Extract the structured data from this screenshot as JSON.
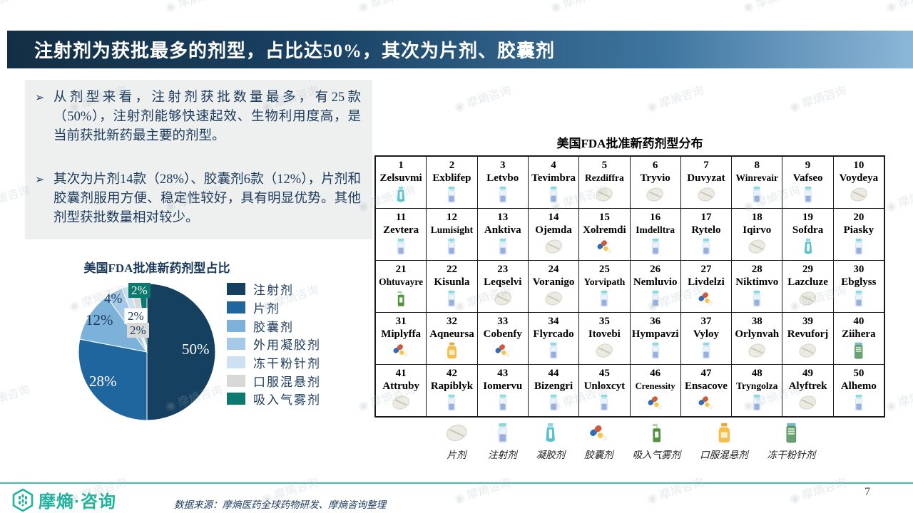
{
  "slide": {
    "title": "注射剂为获批最多的剂型，占比达50%，其次为片剂、胶囊剂",
    "page_number": "7",
    "source": "数据来源：摩熵医药全球药物研发、摩熵咨询整理",
    "logo_text": "摩熵·咨询",
    "watermark_text": "摩熵咨询"
  },
  "bullets": [
    "从剂型来看，注射剂获批数量最多，有25款（50%），注射剂能够快速起效、生物利用度高，是当前获批新药最主要的剂型。",
    "其次为片剂14款（28%）、胶囊剂6款（12%），片剂和胶囊剂服用方便、稳定性较好，具有明显优势。其他剂型获批数量相对较少。"
  ],
  "chart_data": {
    "type": "pie",
    "title": "美国FDA批准新药剂型占比",
    "labels": [
      "注射剂",
      "片剂",
      "胶囊剂",
      "外用凝胶剂",
      "冻干粉针剂",
      "口服混悬剂",
      "吸入气雾剂"
    ],
    "values": [
      50,
      28,
      12,
      4,
      2,
      2,
      2
    ],
    "unit": "%",
    "colors": [
      "#16405f",
      "#1f669e",
      "#7cb1da",
      "#a5c9e6",
      "#cee1f2",
      "#d8d8d8",
      "#0c7a6e"
    ],
    "legend_position": "right",
    "start_angle_deg": 0,
    "direction": "clockwise"
  },
  "table": {
    "title": "美国FDA批准新药剂型分布",
    "drugs": [
      {
        "no": "1",
        "name": "Zelsuvmi",
        "form": "gel"
      },
      {
        "no": "2",
        "name": "Exblifep",
        "form": "injection"
      },
      {
        "no": "3",
        "name": "Letvbo",
        "form": "injection"
      },
      {
        "no": "4",
        "name": "Tevimbra",
        "form": "injection"
      },
      {
        "no": "5",
        "name": "Rezdiffra",
        "form": "tablet"
      },
      {
        "no": "6",
        "name": "Tryvio",
        "form": "tablet"
      },
      {
        "no": "7",
        "name": "Duvyzat",
        "form": "tablet"
      },
      {
        "no": "8",
        "name": "Winrevair",
        "form": "injection"
      },
      {
        "no": "9",
        "name": "Vafseo",
        "form": "injection"
      },
      {
        "no": "10",
        "name": "Voydeya",
        "form": "tablet"
      },
      {
        "no": "11",
        "name": "Zevtera",
        "form": "injection"
      },
      {
        "no": "12",
        "name": "Lumisight",
        "form": "injection"
      },
      {
        "no": "13",
        "name": "Anktiva",
        "form": "injection"
      },
      {
        "no": "14",
        "name": "Ojemda",
        "form": "tablet"
      },
      {
        "no": "15",
        "name": "Xolremdi",
        "form": "capsule"
      },
      {
        "no": "16",
        "name": "Imdelltra",
        "form": "injection"
      },
      {
        "no": "17",
        "name": "Rytelo",
        "form": "injection"
      },
      {
        "no": "18",
        "name": "Iqirvo",
        "form": "tablet"
      },
      {
        "no": "19",
        "name": "Sofdra",
        "form": "gel"
      },
      {
        "no": "20",
        "name": "Piasky",
        "form": "injection"
      },
      {
        "no": "21",
        "name": "Ohtuvayre",
        "form": "inhaler"
      },
      {
        "no": "22",
        "name": "Kisunla",
        "form": "injection"
      },
      {
        "no": "23",
        "name": "Leqselvi",
        "form": "tablet"
      },
      {
        "no": "24",
        "name": "Voranigo",
        "form": "tablet"
      },
      {
        "no": "25",
        "name": "Yorvipath",
        "form": "injection"
      },
      {
        "no": "26",
        "name": "Nemluvio",
        "form": "injection"
      },
      {
        "no": "27",
        "name": "Livdelzi",
        "form": "capsule"
      },
      {
        "no": "28",
        "name": "Niktimvo",
        "form": "injection"
      },
      {
        "no": "29",
        "name": "Lazcluze",
        "form": "tablet"
      },
      {
        "no": "30",
        "name": "Ebglyss",
        "form": "injection"
      },
      {
        "no": "31",
        "name": "Miplyffa",
        "form": "capsule"
      },
      {
        "no": "32",
        "name": "Aqneursa",
        "form": "suspension"
      },
      {
        "no": "33",
        "name": "Cobenfy",
        "form": "capsule"
      },
      {
        "no": "34",
        "name": "Flyrcado",
        "form": "injection"
      },
      {
        "no": "35",
        "name": "Itovebi",
        "form": "tablet"
      },
      {
        "no": "36",
        "name": "Hympavzi",
        "form": "injection"
      },
      {
        "no": "37",
        "name": "Vyloy",
        "form": "injection"
      },
      {
        "no": "38",
        "name": "Orlynvah",
        "form": "tablet"
      },
      {
        "no": "39",
        "name": "Revuforj",
        "form": "tablet"
      },
      {
        "no": "40",
        "name": "Ziihera",
        "form": "lyophilized"
      },
      {
        "no": "41",
        "name": "Attruby",
        "form": "tablet"
      },
      {
        "no": "42",
        "name": "Rapiblyk",
        "form": "injection"
      },
      {
        "no": "43",
        "name": "Iomervu",
        "form": "injection"
      },
      {
        "no": "44",
        "name": "Bizengri",
        "form": "injection"
      },
      {
        "no": "45",
        "name": "Unloxcyt",
        "form": "injection"
      },
      {
        "no": "46",
        "name": "Crenessity",
        "form": "capsule"
      },
      {
        "no": "47",
        "name": "Ensacove",
        "form": "capsule"
      },
      {
        "no": "48",
        "name": "Tryngolza",
        "form": "injection"
      },
      {
        "no": "49",
        "name": "Alyftrek",
        "form": "tablet"
      },
      {
        "no": "50",
        "name": "Alhemo",
        "form": "injection"
      }
    ]
  },
  "form_legend": [
    {
      "label": "片剂",
      "form": "tablet"
    },
    {
      "label": "注射剂",
      "form": "injection"
    },
    {
      "label": "凝胶剂",
      "form": "gel"
    },
    {
      "label": "胶囊剂",
      "form": "capsule"
    },
    {
      "label": "吸入气雾剂",
      "form": "inhaler"
    },
    {
      "label": "口服混悬剂",
      "form": "suspension"
    },
    {
      "label": "冻干粉针剂",
      "form": "lyophilized"
    }
  ]
}
